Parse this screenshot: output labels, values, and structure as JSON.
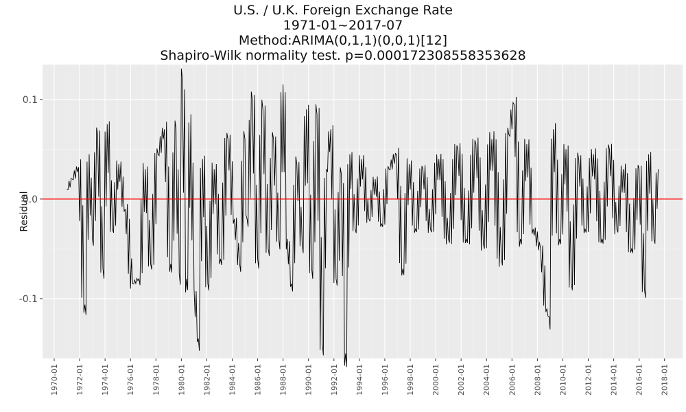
{
  "chart_data": {
    "type": "line",
    "title": "U.S. / U.K. Foreign Exchange Rate",
    "subtitle_lines": [
      "1971-01~2017-07",
      "Method:ARIMA(0,1,1)(0,0,1)[12]",
      "Shapiro-Wilk normality test. p=0.000172308558353628"
    ],
    "xlabel": "",
    "ylabel": "Residual",
    "x_range": [
      "1971-01",
      "2017-07"
    ],
    "xlim": [
      "1969-02",
      "2019-06"
    ],
    "ylim": [
      -0.16,
      0.135
    ],
    "grid": true,
    "y_ticks": [
      {
        "value": 0.1,
        "label": "0.1"
      },
      {
        "value": 0.0,
        "label": "0.0"
      },
      {
        "value": -0.1,
        "label": "-0.1"
      }
    ],
    "x_ticks": [
      "1970-01",
      "1972-01",
      "1974-01",
      "1976-01",
      "1978-01",
      "1980-01",
      "1982-01",
      "1984-01",
      "1986-01",
      "1988-01",
      "1990-01",
      "1992-01",
      "1994-01",
      "1996-01",
      "1998-01",
      "2000-01",
      "2002-01",
      "2004-01",
      "2006-01",
      "2008-01",
      "2010-01",
      "2012-01",
      "2014-01",
      "2016-01",
      "2018-01"
    ],
    "reference_line": {
      "value": 0.0,
      "color": "#ff0000"
    },
    "line_color": "#000000",
    "panel_color": "#ebebeb",
    "series": [
      {
        "points": [
          [
            "1971-01",
            0.01
          ],
          [
            "1971-06",
            0.02
          ],
          [
            "1971-12",
            0.032
          ],
          [
            "1972-06",
            -0.106
          ],
          [
            "1972-10",
            0.045
          ],
          [
            "1973-01",
            -0.04
          ],
          [
            "1973-06",
            0.065
          ],
          [
            "1973-11",
            -0.07
          ],
          [
            "1974-03",
            0.075
          ],
          [
            "1974-08",
            -0.03
          ],
          [
            "1975-02",
            0.035
          ],
          [
            "1975-08",
            -0.01
          ],
          [
            "1976-03",
            -0.085
          ],
          [
            "1976-09",
            -0.08
          ],
          [
            "1977-03",
            0.03
          ],
          [
            "1977-08",
            -0.065
          ],
          [
            "1978-03",
            0.045
          ],
          [
            "1978-09",
            0.07
          ],
          [
            "1979-03",
            -0.065
          ],
          [
            "1979-08",
            0.07
          ],
          [
            "1979-11",
            -0.075
          ],
          [
            "1980-02",
            0.12
          ],
          [
            "1980-06",
            -0.08
          ],
          [
            "1980-10",
            0.085
          ],
          [
            "1981-01",
            -0.09
          ],
          [
            "1981-05",
            -0.14
          ],
          [
            "1981-09",
            0.04
          ],
          [
            "1982-02",
            -0.085
          ],
          [
            "1982-08",
            0.03
          ],
          [
            "1983-02",
            -0.06
          ],
          [
            "1983-09",
            0.06
          ],
          [
            "1984-03",
            -0.02
          ],
          [
            "1984-08",
            -0.065
          ],
          [
            "1985-01",
            0.06
          ],
          [
            "1985-03",
            -0.02
          ],
          [
            "1985-08",
            0.1
          ],
          [
            "1986-01",
            -0.06
          ],
          [
            "1986-06",
            0.09
          ],
          [
            "1986-11",
            -0.05
          ],
          [
            "1987-04",
            0.06
          ],
          [
            "1987-09",
            -0.04
          ],
          [
            "1988-01",
            0.115
          ],
          [
            "1988-05",
            -0.04
          ],
          [
            "1988-09",
            -0.085
          ],
          [
            "1989-02",
            0.035
          ],
          [
            "1989-07",
            -0.045
          ],
          [
            "1989-11",
            0.09
          ],
          [
            "1990-04",
            -0.07
          ],
          [
            "1990-09",
            0.085
          ],
          [
            "1991-02",
            -0.145
          ],
          [
            "1991-06",
            0.03
          ],
          [
            "1991-10",
            0.07
          ],
          [
            "1992-03",
            -0.08
          ],
          [
            "1992-08",
            0.025
          ],
          [
            "1992-12",
            -0.155
          ],
          [
            "1993-04",
            0.045
          ],
          [
            "1993-09",
            -0.03
          ],
          [
            "1994-03",
            0.04
          ],
          [
            "1994-10",
            -0.02
          ],
          [
            "1995-04",
            0.02
          ],
          [
            "1995-10",
            -0.025
          ],
          [
            "1996-05",
            0.03
          ],
          [
            "1996-12",
            0.045
          ],
          [
            "1997-06",
            -0.07
          ],
          [
            "1997-12",
            0.035
          ],
          [
            "1998-06",
            -0.03
          ],
          [
            "1999-01",
            0.03
          ],
          [
            "1999-08",
            -0.03
          ],
          [
            "2000-04",
            0.04
          ],
          [
            "2001-01",
            -0.04
          ],
          [
            "2001-10",
            0.05
          ],
          [
            "2002-06",
            -0.04
          ],
          [
            "2003-03",
            0.055
          ],
          [
            "2003-10",
            -0.045
          ],
          [
            "2004-06",
            0.06
          ],
          [
            "2005-03",
            -0.06
          ],
          [
            "2005-10",
            0.065
          ],
          [
            "2006-03",
            0.095
          ],
          [
            "2006-09",
            -0.04
          ],
          [
            "2007-03",
            0.055
          ],
          [
            "2007-09",
            -0.03
          ],
          [
            "2008-04",
            -0.05
          ],
          [
            "2008-10",
            -0.11
          ],
          [
            "2008-12",
            -0.118
          ],
          [
            "2009-04",
            0.07
          ],
          [
            "2009-10",
            -0.04
          ],
          [
            "2010-04",
            0.05
          ],
          [
            "2010-09",
            -0.085
          ],
          [
            "2011-04",
            0.04
          ],
          [
            "2011-10",
            -0.03
          ],
          [
            "2012-06",
            0.045
          ],
          [
            "2013-02",
            -0.04
          ],
          [
            "2013-09",
            0.05
          ],
          [
            "2014-04",
            -0.03
          ],
          [
            "2014-10",
            0.03
          ],
          [
            "2015-06",
            -0.05
          ],
          [
            "2016-01",
            0.03
          ],
          [
            "2016-06",
            -0.09
          ],
          [
            "2016-10",
            0.045
          ],
          [
            "2017-03",
            -0.04
          ],
          [
            "2017-07",
            0.03
          ]
        ]
      }
    ]
  }
}
